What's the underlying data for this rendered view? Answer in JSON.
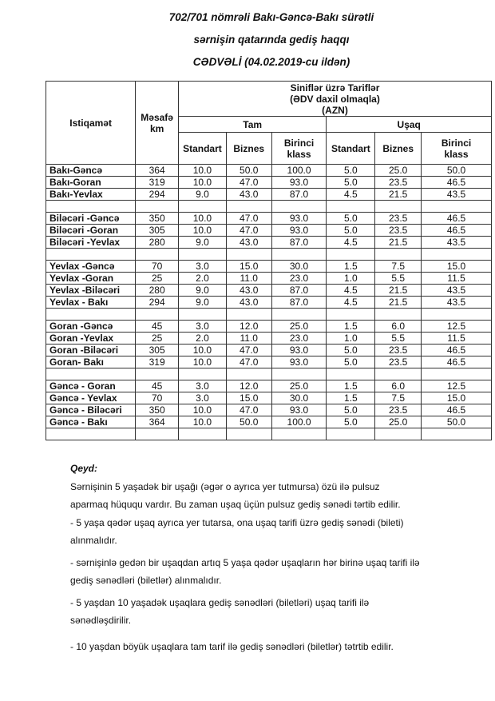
{
  "title": {
    "line1": "702/701 nömrəli Bakı-Gəncə-Bakı sürətli",
    "line2": "sərnişin qatarında gediş haqqı",
    "line3": "CƏDVƏLİ  (04.02.2019-cu ildən)"
  },
  "table": {
    "col_direction": "Istiqamət",
    "col_distance": "Məsafə km",
    "group_header": [
      "Siniflər üzrə Tariflər",
      "(ƏDV daxil olmaqla)",
      "(AZN)"
    ],
    "full": "Tam",
    "child": "Uşaq",
    "classes": [
      "Standart",
      "Biznes",
      "Birinci klass",
      "Standart",
      "Biznes",
      "Birinci klass"
    ],
    "rows": [
      [
        "Bakı-Gəncə",
        "364",
        "10.0",
        "50.0",
        "100.0",
        "5.0",
        "25.0",
        "50.0"
      ],
      [
        "Bakı-Goran",
        "319",
        "10.0",
        "47.0",
        "93.0",
        "5.0",
        "23.5",
        "46.5"
      ],
      [
        "Bakı-Yevlax",
        "294",
        "9.0",
        "43.0",
        "87.0",
        "4.5",
        "21.5",
        "43.5"
      ],
      [],
      [
        "Biləcəri -Gəncə",
        "350",
        "10.0",
        "47.0",
        "93.0",
        "5.0",
        "23.5",
        "46.5"
      ],
      [
        "Biləcəri -Goran",
        "305",
        "10.0",
        "47.0",
        "93.0",
        "5.0",
        "23.5",
        "46.5"
      ],
      [
        "Biləcəri -Yevlax",
        "280",
        "9.0",
        "43.0",
        "87.0",
        "4.5",
        "21.5",
        "43.5"
      ],
      [],
      [
        "Yevlax -Gəncə",
        "70",
        "3.0",
        "15.0",
        "30.0",
        "1.5",
        "7.5",
        "15.0"
      ],
      [
        "Yevlax -Goran",
        "25",
        "2.0",
        "11.0",
        "23.0",
        "1.0",
        "5.5",
        "11.5"
      ],
      [
        "Yevlax -Biləcəri",
        "280",
        "9.0",
        "43.0",
        "87.0",
        "4.5",
        "21.5",
        "43.5"
      ],
      [
        "Yevlax - Bakı",
        "294",
        "9.0",
        "43.0",
        "87.0",
        "4.5",
        "21.5",
        "43.5"
      ],
      [],
      [
        "Goran -Gəncə",
        "45",
        "3.0",
        "12.0",
        "25.0",
        "1.5",
        "6.0",
        "12.5"
      ],
      [
        "Goran -Yevlax",
        "25",
        "2.0",
        "11.0",
        "23.0",
        "1.0",
        "5.5",
        "11.5"
      ],
      [
        "Goran -Biləcəri",
        "305",
        "10.0",
        "47.0",
        "93.0",
        "5.0",
        "23.5",
        "46.5"
      ],
      [
        "Goran- Bakı",
        "319",
        "10.0",
        "47.0",
        "93.0",
        "5.0",
        "23.5",
        "46.5"
      ],
      [],
      [
        "Gəncə - Goran",
        "45",
        "3.0",
        "12.0",
        "25.0",
        "1.5",
        "6.0",
        "12.5"
      ],
      [
        "Gəncə - Yevlax",
        "70",
        "3.0",
        "15.0",
        "30.0",
        "1.5",
        "7.5",
        "15.0"
      ],
      [
        "Gəncə - Biləcəri",
        "350",
        "10.0",
        "47.0",
        "93.0",
        "5.0",
        "23.5",
        "46.5"
      ],
      [
        "Gəncə - Bakı",
        "364",
        "10.0",
        "50.0",
        "100.0",
        "5.0",
        "25.0",
        "50.0"
      ],
      []
    ]
  },
  "notes": {
    "heading": "Qeyd:",
    "p1a": "Sərnişinin 5 yaşadək bir uşağı (əgər o ayrıca yer tutmursa) özü ilə pulsuz",
    "p1b": "aparmaq hüququ vardır. Bu zaman uşaq üçün pulsuz gediş sənədi tərtib edilir.",
    "p2a": "- 5 yaşa qədər uşaq ayrıca yer tutarsa, ona uşaq tarifi üzrə gediş sənədi (bileti)",
    "p2b": "alınmalıdır.",
    "p3a": "- sərnişinlə gedən bir uşaqdan artıq 5 yaşa qədər uşaqların hər birinə uşaq tarifi ilə",
    "p3b": "gediş sənədləri (biletlər) alınmalıdır.",
    "p4a": "- 5 yaşdan 10 yaşadək uşaqlara gediş sənədləri (biletləri) uşaq tarifi ilə",
    "p4b": "sənədləşdirilir.",
    "p5": "- 10 yaşdan böyük uşaqlara tam tarif ilə gediş sənədləri (biletlər) tətrtib edilir."
  }
}
